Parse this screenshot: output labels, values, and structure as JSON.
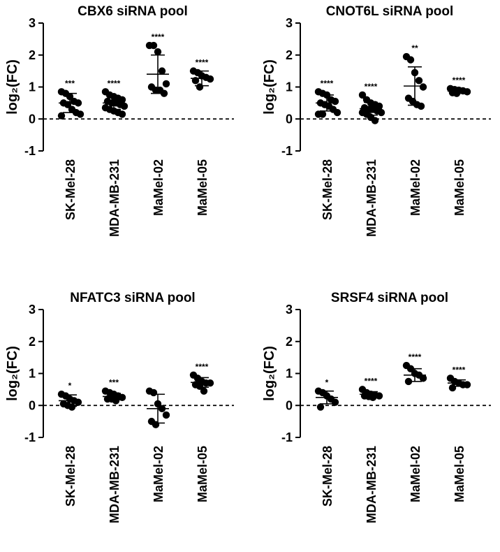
{
  "chart_data": [
    {
      "type": "dot",
      "title": "CBX6 siRNA pool",
      "ylabel": "log₂(FC)",
      "ylim": [
        -1,
        3
      ],
      "yticks": [
        -1,
        0,
        1,
        2,
        3
      ],
      "reference_line": 0,
      "groups": [
        {
          "name": "SK-Mel-28",
          "annotation": "***",
          "mean": 0.5,
          "sd": 0.3,
          "points": [
            0.85,
            0.8,
            0.7,
            0.55,
            0.5,
            0.5,
            0.45,
            0.3,
            0.2,
            0.15,
            0.1
          ]
        },
        {
          "name": "MDA-MB-231",
          "annotation": "****",
          "mean": 0.5,
          "sd": 0.2,
          "points": [
            0.85,
            0.75,
            0.7,
            0.65,
            0.6,
            0.55,
            0.5,
            0.5,
            0.45,
            0.4,
            0.35,
            0.3,
            0.25,
            0.2,
            0.15
          ]
        },
        {
          "name": "MaMel-02",
          "annotation": "****",
          "mean": 1.4,
          "sd": 0.6,
          "points": [
            2.3,
            2.3,
            2.1,
            1.5,
            1.1,
            1.0,
            0.9,
            0.9,
            0.8
          ]
        },
        {
          "name": "MaMel-05",
          "annotation": "****",
          "mean": 1.27,
          "sd": 0.23,
          "points": [
            1.5,
            1.45,
            1.35,
            1.3,
            1.25,
            1.2,
            1.0
          ]
        }
      ]
    },
    {
      "type": "dot",
      "title": "CNOT6L siRNA pool",
      "ylabel": "log₂(FC)",
      "ylim": [
        -1,
        3
      ],
      "yticks": [
        -1,
        0,
        1,
        2,
        3
      ],
      "reference_line": 0,
      "groups": [
        {
          "name": "SK-Mel-28",
          "annotation": "****",
          "mean": 0.5,
          "sd": 0.25,
          "points": [
            0.85,
            0.8,
            0.75,
            0.6,
            0.55,
            0.5,
            0.45,
            0.4,
            0.3,
            0.2,
            0.15,
            0.15
          ]
        },
        {
          "name": "MDA-MB-231",
          "annotation": "****",
          "mean": 0.32,
          "sd": 0.2,
          "points": [
            0.75,
            0.6,
            0.5,
            0.45,
            0.4,
            0.35,
            0.3,
            0.3,
            0.25,
            0.2,
            0.2,
            0.15,
            0.05,
            -0.05
          ]
        },
        {
          "name": "MaMel-02",
          "annotation": "**",
          "mean": 1.03,
          "sd": 0.6,
          "points": [
            1.95,
            1.85,
            1.45,
            1.2,
            1.0,
            0.65,
            0.55,
            0.45,
            0.4
          ]
        },
        {
          "name": "MaMel-05",
          "annotation": "****",
          "mean": 0.87,
          "sd": 0.07,
          "points": [
            0.95,
            0.92,
            0.9,
            0.88,
            0.85,
            0.82,
            0.8
          ]
        }
      ]
    },
    {
      "type": "dot",
      "title": "NFATC3 siRNA pool",
      "ylabel": "log₂(FC)",
      "ylim": [
        -1,
        3
      ],
      "yticks": [
        -1,
        0,
        1,
        2,
        3
      ],
      "reference_line": 0,
      "groups": [
        {
          "name": "SK-Mel-28",
          "annotation": "*",
          "mean": 0.15,
          "sd": 0.18,
          "points": [
            0.35,
            0.3,
            0.2,
            0.15,
            0.1,
            0.05,
            0,
            -0.05
          ]
        },
        {
          "name": "MDA-MB-231",
          "annotation": "***",
          "mean": 0.28,
          "sd": 0.1,
          "points": [
            0.45,
            0.4,
            0.35,
            0.3,
            0.25,
            0.2,
            0.2,
            0.15
          ]
        },
        {
          "name": "MaMel-02",
          "annotation": null,
          "mean": -0.1,
          "sd": 0.45,
          "points": [
            0.45,
            0.4,
            0.05,
            -0.1,
            -0.3,
            -0.5,
            -0.6
          ]
        },
        {
          "name": "MaMel-05",
          "annotation": "****",
          "mean": 0.72,
          "sd": 0.15,
          "points": [
            0.95,
            0.85,
            0.75,
            0.7,
            0.7,
            0.65,
            0.6,
            0.45
          ]
        }
      ]
    },
    {
      "type": "dot",
      "title": "SRSF4 siRNA pool",
      "ylabel": "log₂(FC)",
      "ylim": [
        -1,
        3
      ],
      "yticks": [
        -1,
        0,
        1,
        2,
        3
      ],
      "reference_line": 0,
      "groups": [
        {
          "name": "SK-Mel-28",
          "annotation": "*",
          "mean": 0.25,
          "sd": 0.2,
          "points": [
            0.45,
            0.4,
            0.3,
            0.2,
            0.1,
            -0.05
          ]
        },
        {
          "name": "MDA-MB-231",
          "annotation": "****",
          "mean": 0.35,
          "sd": 0.08,
          "points": [
            0.5,
            0.4,
            0.35,
            0.32,
            0.3,
            0.3,
            0.28,
            0.25
          ]
        },
        {
          "name": "MaMel-02",
          "annotation": "****",
          "mean": 0.95,
          "sd": 0.2,
          "points": [
            1.25,
            1.15,
            1.0,
            0.95,
            0.85,
            0.75
          ]
        },
        {
          "name": "MaMel-05",
          "annotation": "****",
          "mean": 0.7,
          "sd": 0.1,
          "points": [
            0.85,
            0.75,
            0.7,
            0.65,
            0.65,
            0.55
          ]
        }
      ]
    }
  ]
}
